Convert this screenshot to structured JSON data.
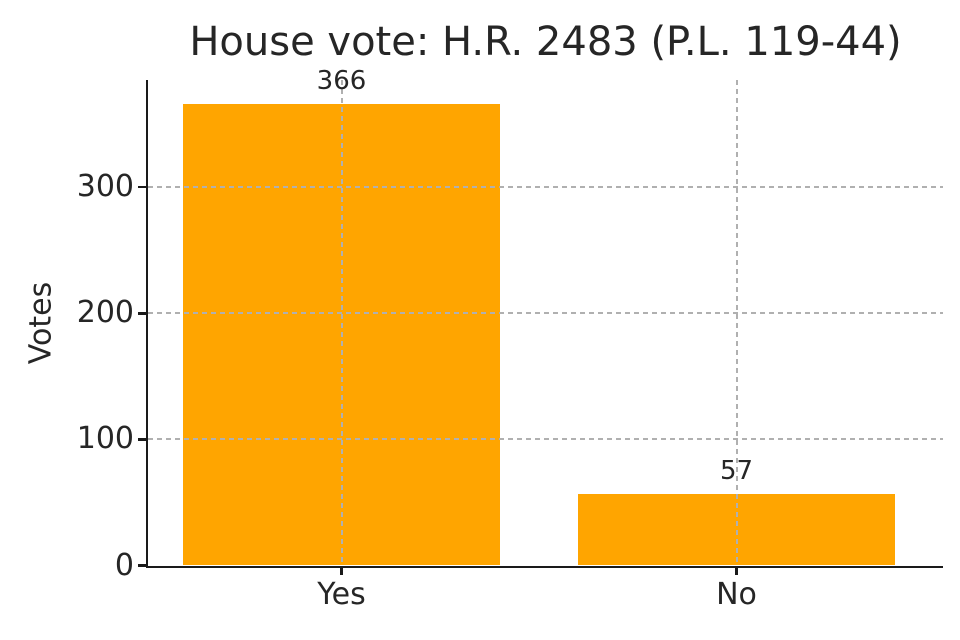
{
  "chart_data": {
    "type": "bar",
    "title": "House vote: H.R. 2483 (P.L. 119-44)",
    "categories": [
      "Yes",
      "No"
    ],
    "values": [
      366,
      57
    ],
    "bar_value_labels": [
      "366",
      "57"
    ],
    "xlabel": "",
    "ylabel": "Votes",
    "yticks": [
      0,
      100,
      200,
      300
    ],
    "ytick_labels": [
      "0",
      "100",
      "200",
      "300"
    ],
    "ylim": [
      0,
      385
    ],
    "grid": {
      "style": "dashed",
      "horizontal": true,
      "vertical": true,
      "drawn_over_bars": true
    },
    "legend": "none",
    "colors": {
      "bar": "#FFA500",
      "grid": "#b0b0b0",
      "axis": "#1a1a1a",
      "text": "#262626",
      "background": "#ffffff"
    }
  }
}
